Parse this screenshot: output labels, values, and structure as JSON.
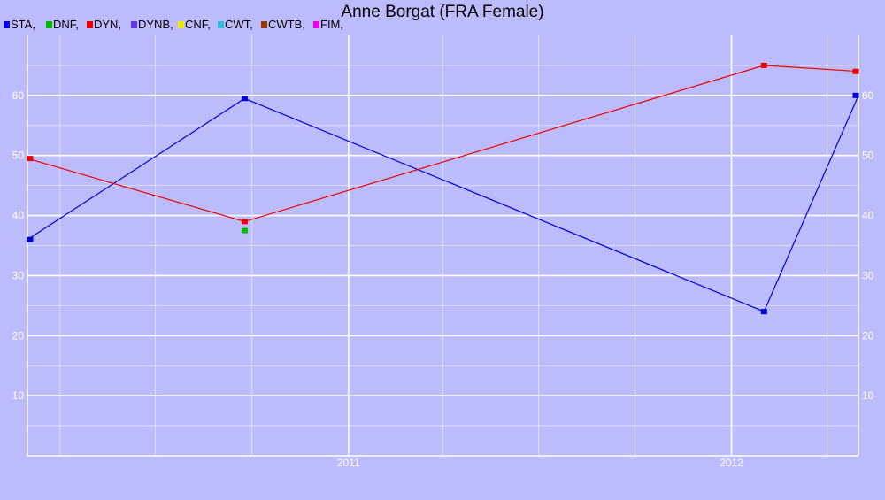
{
  "chart_data": {
    "type": "line",
    "title": "Anne Borgat (FRA Female)",
    "xlabel": "",
    "ylabel": "",
    "x_ticks": [
      "2011",
      "2012"
    ],
    "y_ticks": [
      10,
      20,
      30,
      40,
      50,
      60
    ],
    "xlim": [
      "2010-03-01",
      "2012-05-01"
    ],
    "ylim": [
      0,
      70
    ],
    "grid": true,
    "legend_position": "top-left",
    "legend": [
      {
        "name": "STA",
        "label": "STA,",
        "color": "#0000dd"
      },
      {
        "name": "DNF",
        "label": "DNF,",
        "color": "#00bb00"
      },
      {
        "name": "DYN",
        "label": "DYN,",
        "color": "#ee0000"
      },
      {
        "name": "DYNB",
        "label": "DYNB,",
        "color": "#6633ee"
      },
      {
        "name": "CNF",
        "label": "CNF,",
        "color": "#eeee00"
      },
      {
        "name": "CWT",
        "label": "CWT,",
        "color": "#33bbdd"
      },
      {
        "name": "CWTB",
        "label": "CWTB,",
        "color": "#993300"
      },
      {
        "name": "FIM",
        "label": "FIM,",
        "color": "#ee00ee"
      }
    ],
    "series": [
      {
        "name": "STA",
        "color": "#0000dd",
        "points": [
          {
            "x": "2010-03-01",
            "y": 36
          },
          {
            "x": "2010-09-24",
            "y": 59.5
          },
          {
            "x": "2012-02-01",
            "y": 24
          },
          {
            "x": "2012-05-01",
            "y": 60
          }
        ]
      },
      {
        "name": "DYN",
        "color": "#ee0000",
        "points": [
          {
            "x": "2010-03-01",
            "y": 49.5
          },
          {
            "x": "2010-09-24",
            "y": 39
          },
          {
            "x": "2012-02-01",
            "y": 65
          },
          {
            "x": "2012-05-01",
            "y": 64
          }
        ]
      },
      {
        "name": "DNF",
        "color": "#00bb00",
        "points": [
          {
            "x": "2010-09-24",
            "y": 37.5
          }
        ]
      }
    ]
  }
}
